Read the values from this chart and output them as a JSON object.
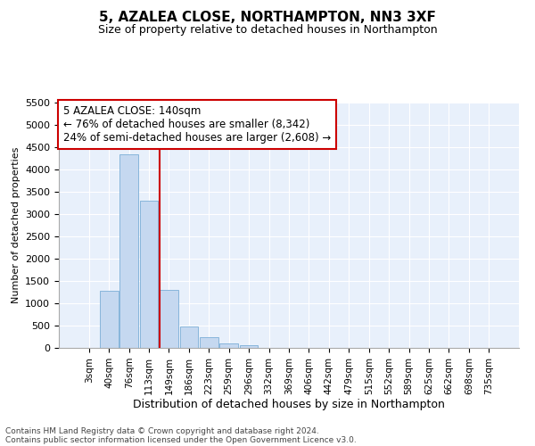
{
  "title": "5, AZALEA CLOSE, NORTHAMPTON, NN3 3XF",
  "subtitle": "Size of property relative to detached houses in Northampton",
  "xlabel": "Distribution of detached houses by size in Northampton",
  "ylabel": "Number of detached properties",
  "footer_line1": "Contains HM Land Registry data © Crown copyright and database right 2024.",
  "footer_line2": "Contains public sector information licensed under the Open Government Licence v3.0.",
  "annotation_title": "5 AZALEA CLOSE: 140sqm",
  "annotation_line1": "← 76% of detached houses are smaller (8,342)",
  "annotation_line2": "24% of semi-detached houses are larger (2,608) →",
  "categories": [
    "3sqm",
    "40sqm",
    "76sqm",
    "113sqm",
    "149sqm",
    "186sqm",
    "223sqm",
    "259sqm",
    "296sqm",
    "332sqm",
    "369sqm",
    "406sqm",
    "442sqm",
    "479sqm",
    "515sqm",
    "552sqm",
    "589sqm",
    "625sqm",
    "662sqm",
    "698sqm",
    "735sqm"
  ],
  "bar_values": [
    0,
    1275,
    4350,
    3300,
    1300,
    480,
    240,
    100,
    65,
    0,
    0,
    0,
    0,
    0,
    0,
    0,
    0,
    0,
    0,
    0,
    0
  ],
  "bar_color": "#c5d8f0",
  "bar_edge_color": "#7aaed6",
  "marker_bar_index": 4,
  "marker_line_color": "#cc0000",
  "annotation_box_color": "#cc0000",
  "background_color": "#e8f0fb",
  "ylim": [
    0,
    5500
  ],
  "yticks": [
    0,
    500,
    1000,
    1500,
    2000,
    2500,
    3000,
    3500,
    4000,
    4500,
    5000,
    5500
  ],
  "title_fontsize": 11,
  "subtitle_fontsize": 9,
  "ylabel_fontsize": 8,
  "xlabel_fontsize": 9,
  "tick_fontsize": 8,
  "xtick_fontsize": 7.5,
  "footer_fontsize": 6.5,
  "annotation_fontsize": 8.5
}
